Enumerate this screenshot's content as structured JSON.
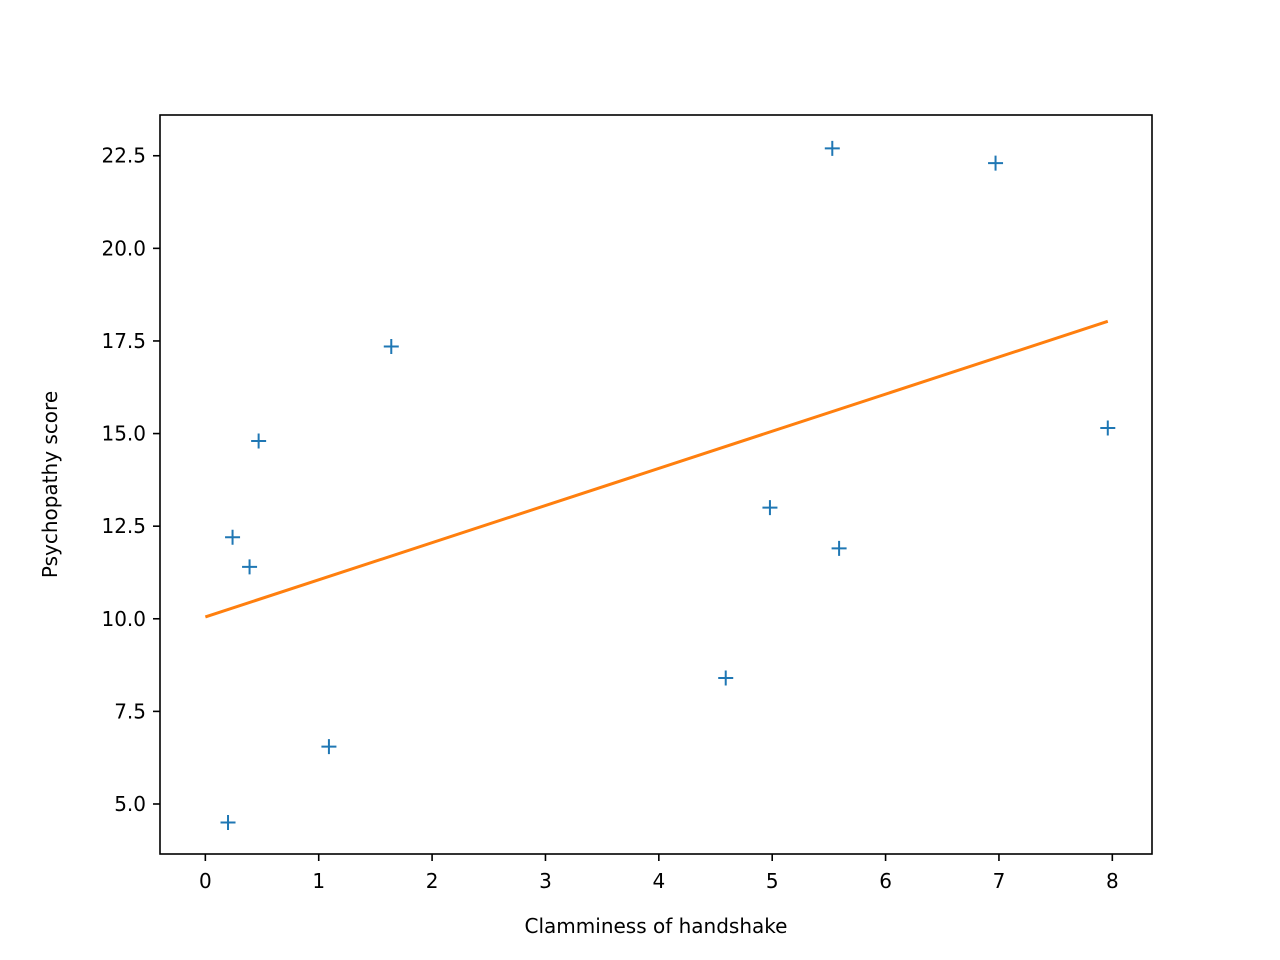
{
  "chart_data": {
    "type": "scatter",
    "title": "",
    "xlabel": "Clamminess of handshake",
    "ylabel": "Psychopathy score",
    "xlim": [
      -0.4,
      8.35
    ],
    "ylim": [
      3.65,
      23.6
    ],
    "x_ticks": [
      0,
      1,
      2,
      3,
      4,
      5,
      6,
      7,
      8
    ],
    "x_tick_labels": [
      "0",
      "1",
      "2",
      "3",
      "4",
      "5",
      "6",
      "7",
      "8"
    ],
    "y_ticks": [
      5.0,
      7.5,
      10.0,
      12.5,
      15.0,
      17.5,
      20.0,
      22.5
    ],
    "y_tick_labels": [
      "5.0",
      "7.5",
      "10.0",
      "12.5",
      "15.0",
      "17.5",
      "20.0",
      "22.5"
    ],
    "grid": false,
    "legend": "none",
    "series": [
      {
        "kind": "scatter",
        "marker": "+",
        "color": "#1f77b4",
        "points": [
          {
            "x": 0.2,
            "y": 4.5
          },
          {
            "x": 0.24,
            "y": 12.2
          },
          {
            "x": 0.39,
            "y": 11.4
          },
          {
            "x": 0.47,
            "y": 14.8
          },
          {
            "x": 1.09,
            "y": 6.55
          },
          {
            "x": 1.64,
            "y": 17.35
          },
          {
            "x": 4.59,
            "y": 8.4
          },
          {
            "x": 4.98,
            "y": 13.0
          },
          {
            "x": 5.53,
            "y": 22.7
          },
          {
            "x": 5.59,
            "y": 11.9
          },
          {
            "x": 6.97,
            "y": 22.3
          },
          {
            "x": 7.96,
            "y": 15.15
          }
        ]
      },
      {
        "kind": "line",
        "color": "#ff7f0e",
        "points": [
          {
            "x": 0.0,
            "y": 10.05
          },
          {
            "x": 7.96,
            "y": 18.03
          }
        ]
      }
    ]
  }
}
